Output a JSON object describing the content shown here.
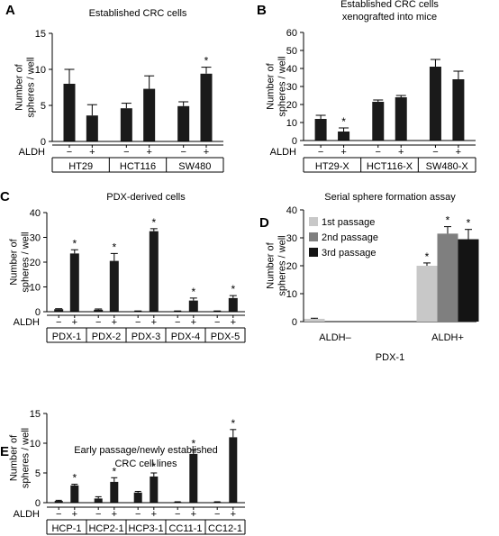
{
  "figure": {
    "panels": [
      {
        "letter": "A",
        "title_lines": [
          "Established CRC cells"
        ]
      },
      {
        "letter": "B",
        "title_lines": [
          "Established CRC cells",
          "xenografted into mice"
        ]
      },
      {
        "letter": "C",
        "title_lines": [
          "PDX-derived cells"
        ]
      },
      {
        "letter": "D",
        "title_lines": [
          "Serial sphere formation assay"
        ]
      },
      {
        "letter": "E",
        "title_lines": [
          "Early passage/newly established",
          "CRC cell lines"
        ]
      }
    ],
    "ylabel_lines": [
      "Number of",
      "spheres / well"
    ],
    "aldh_label": "ALDH",
    "minus": "−",
    "plus": "+",
    "star": "*"
  },
  "chart_data": [
    {
      "panel": "A",
      "type": "bar",
      "title": "Established CRC cells",
      "ylabel": "Number of spheres / well",
      "ylim": [
        0,
        15
      ],
      "yticks": [
        0,
        5,
        10,
        15
      ],
      "groups": [
        "HT29",
        "HCT116",
        "SW480"
      ],
      "conditions": [
        "−",
        "+"
      ],
      "values": [
        8.0,
        3.6,
        4.6,
        7.3,
        4.9,
        9.4
      ],
      "errors": [
        2.0,
        1.5,
        0.7,
        1.8,
        0.6,
        0.9
      ],
      "significant": [
        false,
        false,
        false,
        false,
        false,
        true
      ],
      "bar_color": "#1a1a1a"
    },
    {
      "panel": "B",
      "type": "bar",
      "title": "Established CRC cells xenografted into mice",
      "ylabel": "Number of spheres / well",
      "ylim": [
        0,
        60
      ],
      "yticks": [
        0,
        10,
        20,
        30,
        40,
        50,
        60
      ],
      "groups": [
        "HT29-X",
        "HCT116-X",
        "SW480-X"
      ],
      "conditions": [
        "−",
        "+"
      ],
      "values": [
        12.0,
        5.0,
        21.5,
        24.0,
        41.0,
        34.0
      ],
      "errors": [
        2.0,
        2.0,
        1.0,
        1.0,
        4.0,
        4.5
      ],
      "significant": [
        false,
        true,
        false,
        false,
        false,
        false
      ],
      "bar_color": "#1a1a1a"
    },
    {
      "panel": "C",
      "type": "bar",
      "title": "PDX-derived cells",
      "ylabel": "Number of spheres / well",
      "ylim": [
        0,
        40
      ],
      "yticks": [
        0,
        10,
        20,
        30,
        40
      ],
      "groups": [
        "PDX-1",
        "PDX-2",
        "PDX-3",
        "PDX-4",
        "PDX-5"
      ],
      "conditions": [
        "−",
        "+"
      ],
      "values": [
        1.0,
        23.5,
        0.8,
        20.5,
        0.2,
        32.5,
        0.2,
        4.5,
        0.2,
        5.5
      ],
      "errors": [
        0.2,
        1.5,
        0.3,
        3.0,
        0.1,
        1.0,
        0.1,
        1.0,
        0.1,
        1.0
      ],
      "significant": [
        false,
        true,
        false,
        true,
        false,
        true,
        false,
        true,
        false,
        true
      ],
      "bar_color": "#1a1a1a"
    },
    {
      "panel": "D",
      "type": "bar",
      "title": "Serial sphere formation assay",
      "ylabel": "Number of spheres / well",
      "xlabel": "PDX-1",
      "ylim": [
        0,
        40
      ],
      "yticks": [
        0,
        10,
        20,
        30,
        40
      ],
      "categories": [
        "ALDH–",
        "ALDH+"
      ],
      "series": [
        {
          "name": "1st passage",
          "color": "#c8c8c8",
          "values": [
            1.0,
            20.0
          ],
          "errors": [
            0.2,
            1.0
          ],
          "significant": [
            false,
            true
          ]
        },
        {
          "name": "2nd passage",
          "color": "#7f7f7f",
          "values": [
            0.0,
            31.5
          ],
          "errors": [
            0.0,
            2.5
          ],
          "significant": [
            false,
            true
          ]
        },
        {
          "name": "3rd passage",
          "color": "#141414",
          "values": [
            0.0,
            29.5
          ],
          "errors": [
            0.0,
            3.5
          ],
          "significant": [
            false,
            true
          ]
        }
      ],
      "legend_position": "top-left"
    },
    {
      "panel": "E",
      "type": "bar",
      "title": "Early passage/newly established CRC cell lines",
      "ylabel": "Number of spheres / well",
      "ylim": [
        0,
        15
      ],
      "yticks": [
        0,
        5,
        10,
        15
      ],
      "groups": [
        "HCP-1",
        "HCP2-1",
        "HCP3-1",
        "CC11-1",
        "CC12-1"
      ],
      "conditions": [
        "−",
        "+"
      ],
      "values": [
        0.3,
        2.9,
        0.7,
        3.5,
        1.7,
        4.4,
        0.1,
        8.2,
        0.1,
        11.0
      ],
      "errors": [
        0.1,
        0.2,
        0.3,
        0.7,
        0.2,
        0.6,
        0.05,
        0.7,
        0.05,
        1.3
      ],
      "significant": [
        false,
        true,
        false,
        true,
        false,
        true,
        false,
        true,
        false,
        true
      ],
      "bar_color": "#1a1a1a"
    }
  ]
}
